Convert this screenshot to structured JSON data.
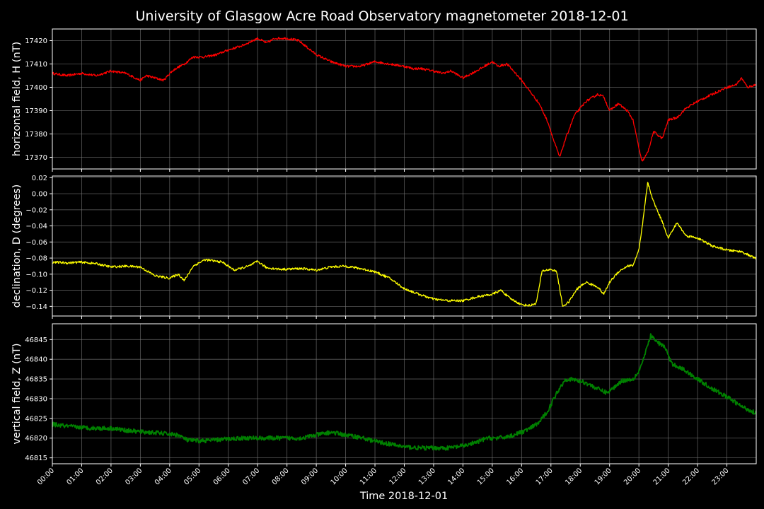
{
  "chart_data": {
    "title": "University of Glasgow Acre Road Observatory magnetometer 2018-12-01",
    "xlabel": "Time 2018-12-01",
    "x_ticks": [
      "00:00",
      "01:00",
      "02:00",
      "03:00",
      "04:00",
      "05:00",
      "06:00",
      "07:00",
      "08:00",
      "09:00",
      "10:00",
      "11:00",
      "12:00",
      "13:00",
      "14:00",
      "15:00",
      "16:00",
      "17:00",
      "18:00",
      "19:00",
      "20:00",
      "21:00",
      "22:00",
      "23:00"
    ],
    "xlim_hours": [
      0,
      24
    ],
    "grid": true,
    "panels": [
      {
        "type": "line",
        "ylabel": "horizontal field, H (nT)",
        "color": "#ff0000",
        "ylim": [
          17365,
          17425
        ],
        "yticks": [
          17370,
          17380,
          17390,
          17400,
          17410,
          17420
        ],
        "ytick_labels": [
          "17370",
          "17380",
          "17390",
          "17400",
          "17410",
          "17420"
        ],
        "noise": 0.5,
        "x": [
          0,
          0.5,
          1,
          1.5,
          2,
          2.5,
          3,
          3.2,
          3.5,
          3.8,
          4,
          4.2,
          4.5,
          4.8,
          5.2,
          5.6,
          6,
          6.5,
          7,
          7.3,
          7.6,
          8,
          8.4,
          8.7,
          9,
          9.5,
          10,
          10.5,
          11,
          11.5,
          12,
          12.3,
          12.6,
          13,
          13.3,
          13.6,
          14,
          14.3,
          14.6,
          15,
          15.2,
          15.5,
          15.8,
          16,
          16.3,
          16.6,
          16.9,
          17.1,
          17.3,
          17.5,
          17.8,
          18.2,
          18.6,
          18.8,
          19,
          19.3,
          19.6,
          19.8,
          20,
          20.1,
          20.3,
          20.5,
          20.8,
          21,
          21.3,
          21.6,
          22,
          22.5,
          23,
          23.3,
          23.5,
          23.7,
          23.95
        ],
        "y": [
          17406,
          17405,
          17406,
          17405,
          17407,
          17406,
          17403,
          17405,
          17404,
          17403,
          17406,
          17408,
          17410,
          17413,
          17413,
          17414,
          17416,
          17418,
          17421,
          17419,
          17421,
          17421,
          17420,
          17417,
          17414,
          17411,
          17409,
          17409,
          17411,
          17410,
          17409,
          17408,
          17408,
          17407,
          17406,
          17407,
          17404,
          17406,
          17408,
          17411,
          17409,
          17410,
          17406,
          17403,
          17398,
          17393,
          17385,
          17377,
          17370,
          17378,
          17388,
          17394,
          17397,
          17396,
          17390,
          17393,
          17390,
          17386,
          17374,
          17368,
          17372,
          17381,
          17378,
          17386,
          17387,
          17391,
          17394,
          17397,
          17400,
          17401,
          17404,
          17400,
          17401
        ]
      },
      {
        "type": "line",
        "ylabel": "declination, D (degrees)",
        "color": "#ffff00",
        "ylim": [
          -0.152,
          0.022
        ],
        "yticks": [
          -0.14,
          -0.12,
          -0.1,
          -0.08,
          -0.06,
          -0.04,
          -0.02,
          0.0,
          0.02
        ],
        "ytick_labels": [
          "−0.14",
          "−0.12",
          "−0.10",
          "−0.08",
          "−0.06",
          "−0.04",
          "−0.02",
          "0.00",
          "0.02"
        ],
        "noise": 0.0014,
        "x": [
          0,
          0.5,
          1,
          1.5,
          2,
          2.5,
          3,
          3.5,
          4,
          4.3,
          4.5,
          4.8,
          5.2,
          5.8,
          6.2,
          6.7,
          7.0,
          7.3,
          7.8,
          8.5,
          9,
          9.5,
          10,
          10.5,
          11,
          11.5,
          12,
          12.5,
          13,
          13.5,
          14,
          14.5,
          15,
          15.3,
          15.6,
          16,
          16.3,
          16.5,
          16.7,
          17,
          17.2,
          17.4,
          17.6,
          17.9,
          18.2,
          18.6,
          18.8,
          19,
          19.3,
          19.6,
          19.8,
          20,
          20.1,
          20.3,
          20.5,
          20.8,
          21,
          21.3,
          21.6,
          22,
          22.5,
          23,
          23.5,
          23.95
        ],
        "y": [
          -0.085,
          -0.086,
          -0.085,
          -0.087,
          -0.091,
          -0.09,
          -0.091,
          -0.102,
          -0.105,
          -0.1,
          -0.108,
          -0.09,
          -0.082,
          -0.085,
          -0.095,
          -0.09,
          -0.084,
          -0.092,
          -0.094,
          -0.093,
          -0.095,
          -0.091,
          -0.09,
          -0.093,
          -0.097,
          -0.105,
          -0.118,
          -0.125,
          -0.131,
          -0.133,
          -0.133,
          -0.128,
          -0.125,
          -0.12,
          -0.13,
          -0.138,
          -0.139,
          -0.136,
          -0.096,
          -0.094,
          -0.097,
          -0.14,
          -0.135,
          -0.118,
          -0.11,
          -0.116,
          -0.125,
          -0.11,
          -0.097,
          -0.09,
          -0.089,
          -0.07,
          -0.045,
          0.014,
          -0.01,
          -0.035,
          -0.055,
          -0.036,
          -0.052,
          -0.055,
          -0.065,
          -0.07,
          -0.072,
          -0.08
        ]
      },
      {
        "type": "line",
        "ylabel": "vertical field, Z (nT)",
        "color": "#008000",
        "ylim": [
          46813.5,
          46849
        ],
        "yticks": [
          46815,
          46820,
          46825,
          46830,
          46835,
          46840,
          46845
        ],
        "ytick_labels": [
          "46815",
          "46820",
          "46825",
          "46830",
          "46835",
          "46840",
          "46845"
        ],
        "noise": 0.55,
        "x": [
          0,
          0.5,
          1,
          1.5,
          2,
          2.5,
          3,
          3.5,
          4,
          4.3,
          4.6,
          5,
          5.5,
          6,
          6.5,
          7,
          7.5,
          8,
          8.5,
          9,
          9.5,
          10,
          10.5,
          11,
          11.5,
          12,
          12.5,
          13,
          13.5,
          14,
          14.5,
          14.8,
          15.2,
          15.6,
          16,
          16.3,
          16.6,
          16.9,
          17.2,
          17.5,
          17.8,
          18.2,
          18.6,
          18.9,
          19.1,
          19.4,
          19.8,
          20,
          20.2,
          20.4,
          20.6,
          20.9,
          21.1,
          21.5,
          22,
          22.5,
          23,
          23.5,
          23.95
        ],
        "y": [
          46823.5,
          46823,
          46822.7,
          46822.5,
          46822.5,
          46822,
          46821.6,
          46821.4,
          46821,
          46820.8,
          46819.5,
          46819.3,
          46819.5,
          46819.8,
          46820,
          46820,
          46820,
          46820,
          46820,
          46820.8,
          46821.5,
          46820.8,
          46820.2,
          46819.2,
          46818.5,
          46817.8,
          46817.5,
          46817.5,
          46817.5,
          46818,
          46819,
          46820,
          46820,
          46820.5,
          46821.5,
          46822.5,
          46824,
          46827,
          46831.5,
          46835,
          46834.8,
          46834,
          46832.5,
          46831.5,
          46832.5,
          46834.5,
          46835,
          46837,
          46841,
          46846,
          46844.5,
          46843,
          46839,
          46837.5,
          46835,
          46832.5,
          46830.5,
          46828,
          46826.5
        ]
      }
    ]
  }
}
